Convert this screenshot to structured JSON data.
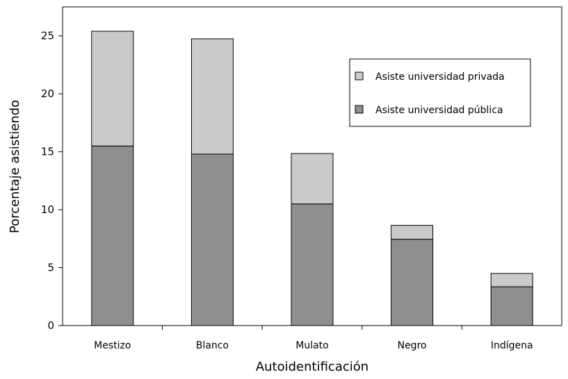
{
  "chart_data": {
    "type": "bar",
    "stacked": true,
    "categories": [
      "Mestizo",
      "Blanco",
      "Mulato",
      "Negro",
      "Indígena"
    ],
    "series": [
      {
        "name": "Asiste universidad pública",
        "values": [
          15.5,
          14.8,
          10.5,
          7.45,
          3.35
        ],
        "color": "#8f8f8f"
      },
      {
        "name": "Asiste universidad privada",
        "values": [
          9.9,
          9.95,
          4.35,
          1.2,
          1.15
        ],
        "color": "#cacaca"
      }
    ],
    "xlabel": "Autoidentificación",
    "ylabel": "Porcentaje asistiendo",
    "ylim": [
      0,
      27.5
    ],
    "yticks": [
      0,
      5,
      10,
      15,
      20,
      25
    ],
    "grid": false,
    "legend_position": "top-right",
    "legend_order": [
      "Asiste universidad privada",
      "Asiste universidad pública"
    ]
  }
}
